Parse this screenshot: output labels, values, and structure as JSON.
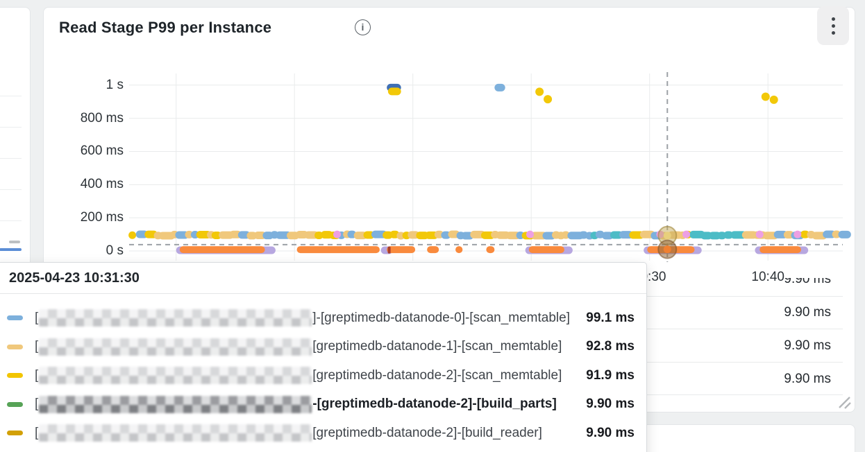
{
  "panel": {
    "title": "Read Stage P99 per Instance",
    "info_icon": "i",
    "kebab_icon": "vertical-three-dots"
  },
  "chart_data": {
    "type": "scatter",
    "title": "Read Stage P99 per Instance",
    "unit": "ms",
    "y_axis": {
      "ticks": [
        {
          "label": "1 s",
          "ms": 1000
        },
        {
          "label": "800 ms",
          "ms": 800
        },
        {
          "label": "600 ms",
          "ms": 600
        },
        {
          "label": "400 ms",
          "ms": 400
        },
        {
          "label": "200 ms",
          "ms": 200
        },
        {
          "label": "0 s",
          "ms": 0
        }
      ],
      "range_ms": [
        0,
        1080
      ],
      "grid": true
    },
    "x_axis": {
      "visible_ticks": [
        {
          "label": "10:30",
          "min": 44
        },
        {
          "label": "10:40",
          "min": 54
        }
      ],
      "grid_minutes": [
        4,
        14,
        24,
        34,
        44,
        54
      ],
      "span_minutes": 60.5
    },
    "band": {
      "t0": 0.6,
      "t1": 60.2,
      "value_ms": 96,
      "palette": [
        "#F0C87C",
        "#7DB0DC",
        "#F2C808"
      ],
      "teal_color": "#4CBCC6",
      "teal_ranges": [
        [
          36.6,
          41.5
        ],
        [
          47.3,
          51.5
        ]
      ],
      "pink_color": "#ED9FE3",
      "pink_times_min": [
        17.6,
        33.9,
        44.9,
        47.1,
        53.3,
        56.5
      ],
      "lead_dot": {
        "t": 0.3,
        "ms": 95,
        "color": "#F2C808"
      }
    },
    "spikes": [
      {
        "t0": 21.8,
        "t1": 23.0,
        "ms": 985,
        "color": "#3F6FB4"
      },
      {
        "t0": 21.9,
        "t1": 23.0,
        "ms": 962,
        "color": "#F2C808"
      },
      {
        "t0": 30.9,
        "t1": 31.8,
        "ms": 985,
        "color": "#7DB0DC"
      }
    ],
    "yellow_dots": [
      {
        "t": 34.7,
        "ms": 960
      },
      {
        "t": 35.4,
        "ms": 915
      },
      {
        "t": 53.8,
        "ms": 930
      },
      {
        "t": 54.5,
        "ms": 912
      }
    ],
    "purple_series": {
      "color": "#B7A7E0",
      "value_ms": 4,
      "segments": [
        [
          4.0,
          12.4
        ],
        [
          21.3,
          22.3
        ],
        [
          33.5,
          37.5
        ],
        [
          43.5,
          48.4
        ],
        [
          52.9,
          57.4
        ]
      ]
    },
    "orange_series": {
      "color": "#F98A3D",
      "value_ms": 8,
      "segments": [
        [
          4.3,
          11.5
        ],
        [
          14.2,
          21.2
        ],
        [
          21.8,
          24.2
        ],
        [
          25.2,
          26.2
        ],
        [
          27.6,
          28.2
        ],
        [
          30.2,
          30.9
        ],
        [
          33.8,
          36.8
        ],
        [
          43.8,
          47.8
        ],
        [
          53.3,
          56.8
        ]
      ]
    },
    "red_tick": {
      "t": 22.0,
      "ms": 6,
      "color": "#A93E2B"
    },
    "crosshair": {
      "time_min": 45.5,
      "value_ms": 38
    },
    "highlights": [
      {
        "time_min": 45.5,
        "ms": 92.8,
        "halo": "rgba(198,172,92,0.5)",
        "ring": "rgba(160,135,60,0.6)",
        "center": "#e8cf7c"
      },
      {
        "time_min": 45.5,
        "ms": 9.9,
        "halo": "rgba(150,105,60,0.55)",
        "ring": "rgba(120,80,40,0.55)",
        "center": "#f08030"
      }
    ]
  },
  "tooltip": {
    "timestamp": "2025-04-23 10:31:30",
    "rows": [
      {
        "color": "#7DB0DC",
        "prefix": "[",
        "label": "]-[greptimedb-datanode-0]-[scan_memtable]",
        "value": "99.1 ms",
        "bold": false
      },
      {
        "color": "#F0C87C",
        "prefix": "[",
        "label": "[greptimedb-datanode-1]-[scan_memtable]",
        "value": "92.8 ms",
        "bold": false
      },
      {
        "color": "#F2C500",
        "prefix": "[",
        "label": "[greptimedb-datanode-2]-[scan_memtable]",
        "value": "91.9 ms",
        "bold": false
      },
      {
        "color": "#57A357",
        "prefix": "[",
        "label": "-[greptimedb-datanode-2]-[build_parts]",
        "value": "9.90 ms",
        "bold": true
      },
      {
        "color": "#D2A006",
        "prefix": "[",
        "label": "[greptimedb-datanode-2]-[build_reader]",
        "value": "9.90 ms",
        "bold": false
      }
    ]
  },
  "legend_table": {
    "clipped_value": "9.90 ms",
    "values": [
      "9.90 ms",
      "9.90 ms",
      "9.90 ms"
    ]
  }
}
